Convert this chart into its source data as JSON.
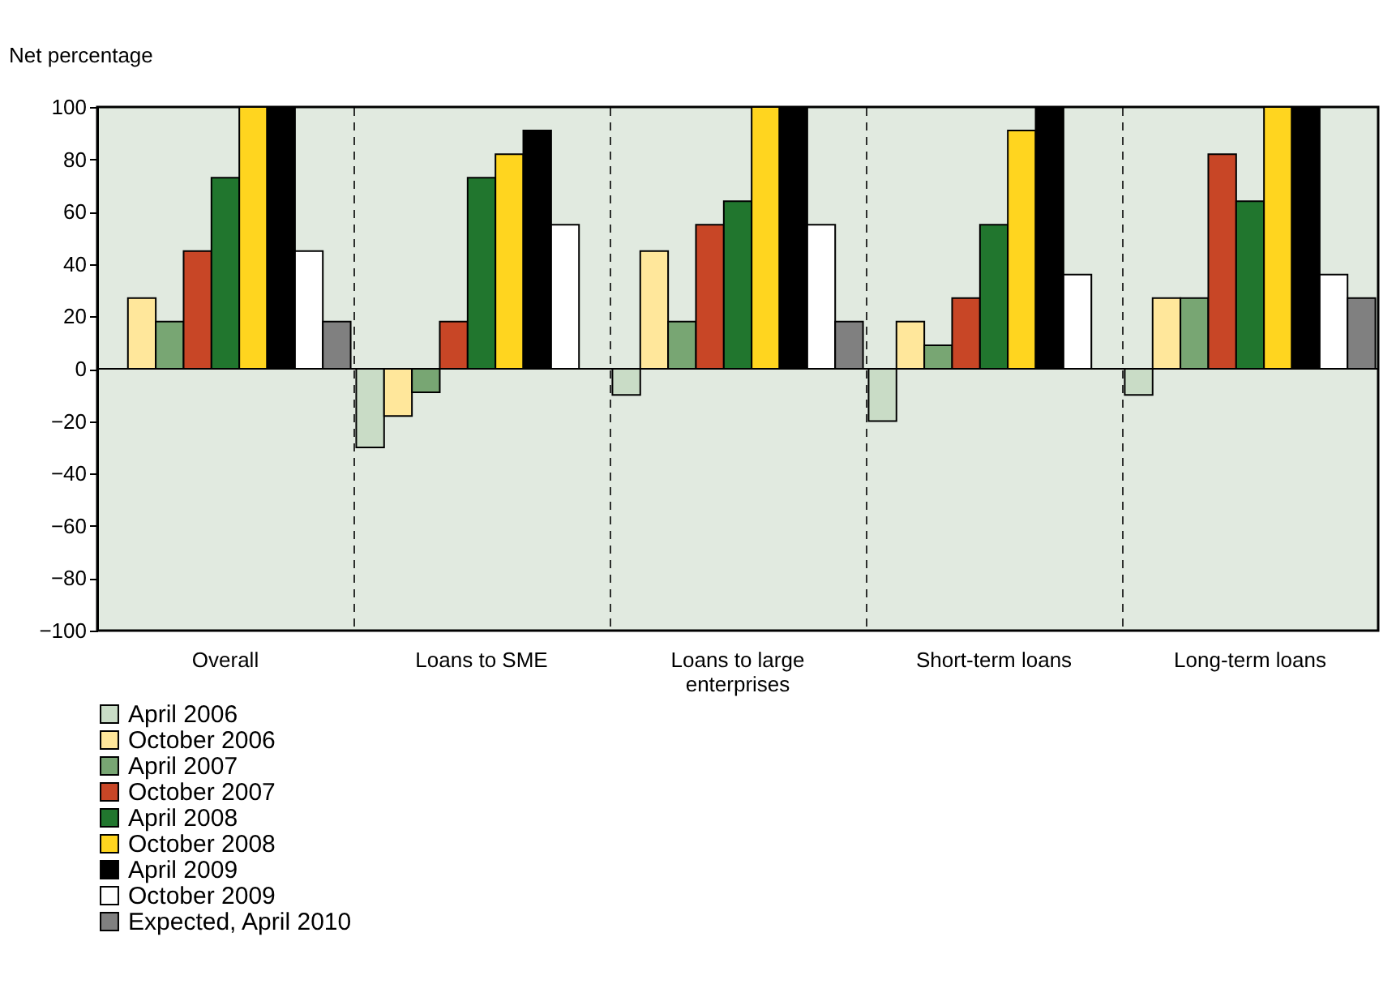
{
  "chart_data": {
    "type": "bar",
    "ylabel": "Net percentage",
    "categories": [
      "Overall",
      "Loans to SME",
      "Loans to large enterprises",
      "Short-term loans",
      "Long-term loans"
    ],
    "series": [
      {
        "name": "April 2006",
        "color": "#c9dcc6",
        "values": [
          null,
          -30,
          -10,
          -20,
          -10
        ]
      },
      {
        "name": "October 2006",
        "color": "#ffe79b",
        "values": [
          27,
          -18,
          45,
          18,
          27
        ]
      },
      {
        "name": "April 2007",
        "color": "#78a673",
        "values": [
          18,
          -9,
          18,
          9,
          27
        ]
      },
      {
        "name": "October 2007",
        "color": "#c84626",
        "values": [
          45,
          18,
          55,
          27,
          82
        ]
      },
      {
        "name": "April 2008",
        "color": "#21762e",
        "values": [
          73,
          73,
          64,
          55,
          64
        ]
      },
      {
        "name": "October 2008",
        "color": "#ffd51f",
        "values": [
          100,
          82,
          100,
          91,
          100
        ]
      },
      {
        "name": "April 2009",
        "color": "#000000",
        "values": [
          100,
          91,
          100,
          100,
          100
        ]
      },
      {
        "name": "October 2009",
        "color": "#ffffff",
        "values": [
          45,
          55,
          55,
          36,
          36
        ]
      },
      {
        "name": "Expected, April 2010",
        "color": "#808080",
        "values": [
          18,
          null,
          18,
          null,
          27
        ]
      }
    ],
    "ylim": [
      -100,
      100
    ],
    "yticks": [
      -100,
      -80,
      -60,
      -40,
      -20,
      0,
      20,
      40,
      60,
      80,
      100
    ],
    "grid": "x",
    "legend": "bottom left"
  }
}
